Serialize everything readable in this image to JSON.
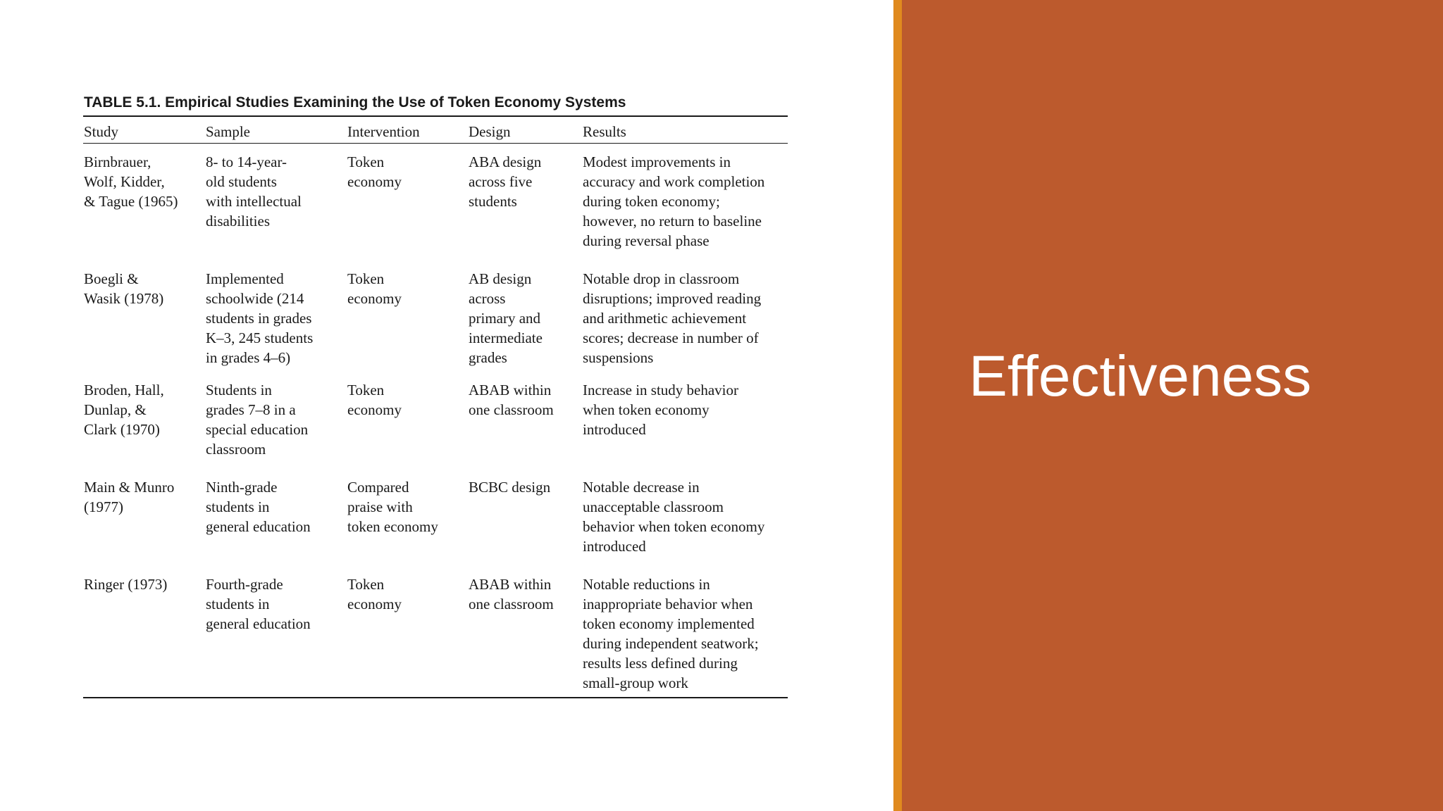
{
  "slide": {
    "title": "Effectiveness",
    "colors": {
      "right_panel": "#bc5a2d",
      "accent_strip": "#e08a1e",
      "left_panel": "#ffffff"
    }
  },
  "table": {
    "caption": "TABLE 5.1.  Empirical Studies Examining the Use of Token Economy Systems",
    "headers": [
      "Study",
      "Sample",
      "Intervention",
      "Design",
      "Results"
    ],
    "rows": [
      {
        "study": "Birnbrauer,\nWolf, Kidder,\n& Tague (1965)",
        "sample": "8- to 14-year-\nold students\nwith intellectual\ndisabilities",
        "intervention": "Token\neconomy",
        "design": "ABA design\nacross five\nstudents",
        "results": "Modest improvements in\naccuracy and work completion\nduring token economy;\nhowever, no return to baseline\nduring reversal phase"
      },
      {
        "study": "Boegli &\nWasik (1978)",
        "sample": "Implemented\nschoolwide (214\nstudents in grades\nK–3, 245 students\nin grades 4–6)",
        "intervention": "Token\neconomy",
        "design": "AB design\nacross\nprimary and\nintermediate\ngrades",
        "results": "Notable drop in classroom\ndisruptions; improved reading\nand arithmetic achievement\nscores; decrease in number of\nsuspensions"
      },
      {
        "study": "Broden, Hall,\nDunlap, &\nClark (1970)",
        "sample": "Students in\ngrades 7–8 in a\nspecial education\nclassroom",
        "intervention": "Token\neconomy",
        "design": "ABAB within\none classroom",
        "results": "Increase in study behavior\nwhen token economy\nintroduced"
      },
      {
        "study": "Main & Munro\n(1977)",
        "sample": "Ninth-grade\nstudents in\ngeneral education",
        "intervention": "Compared\npraise with\ntoken economy",
        "design": "BCBC design",
        "results": "Notable decrease in\nunacceptable classroom\nbehavior when token economy\nintroduced"
      },
      {
        "study": "Ringer (1973)",
        "sample": "Fourth-grade\nstudents in\ngeneral education",
        "intervention": "Token\neconomy",
        "design": "ABAB within\none classroom",
        "results": "Notable reductions in\ninappropriate behavior when\ntoken economy implemented\nduring independent seatwork;\nresults less defined during\nsmall-group work"
      }
    ]
  }
}
